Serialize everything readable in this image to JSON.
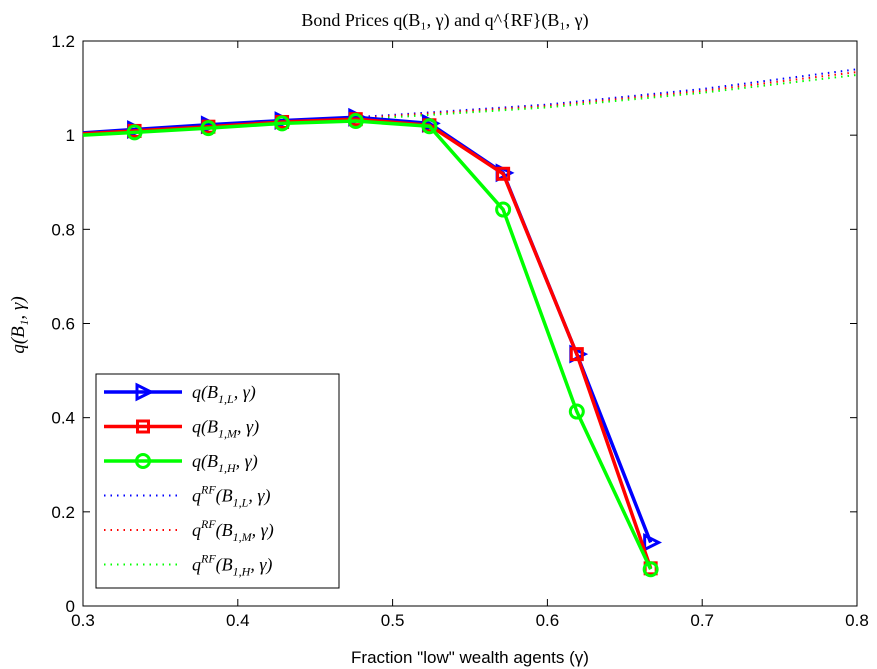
{
  "chart_data": {
    "type": "line",
    "title": "Bond Prices q(B₁, γ) and q^{RF}(B₁, γ)",
    "xlabel": "Fraction \"low\" wealth agents (γ)",
    "ylabel": "q(B₁, γ)",
    "xlim": [
      0.3,
      0.8
    ],
    "ylim": [
      0,
      1.2
    ],
    "xticks": [
      "0.3",
      "0.4",
      "0.5",
      "0.6",
      "0.7",
      "0.8"
    ],
    "yticks": [
      "0",
      "0.2",
      "0.4",
      "0.6",
      "0.8",
      "1",
      "1.2"
    ],
    "grid": false,
    "legend_position": "bottom-left",
    "series": [
      {
        "name": "q(B_{1,L}, γ)",
        "style": "solid",
        "marker": "triangle-right",
        "color": "#0000ff",
        "x": [
          0.3,
          0.3333,
          0.381,
          0.4286,
          0.4762,
          0.5238,
          0.5714,
          0.619,
          0.6667
        ],
        "y": [
          1.005,
          1.012,
          1.022,
          1.031,
          1.038,
          1.025,
          0.92,
          0.535,
          0.135
        ]
      },
      {
        "name": "q(B_{1,M}, γ)",
        "style": "solid",
        "marker": "square",
        "color": "#ff0000",
        "x": [
          0.3,
          0.3333,
          0.381,
          0.4286,
          0.4762,
          0.5238,
          0.5714,
          0.619,
          0.6667
        ],
        "y": [
          1.003,
          1.009,
          1.018,
          1.028,
          1.034,
          1.021,
          0.918,
          0.535,
          0.08
        ]
      },
      {
        "name": "q(B_{1,H}, γ)",
        "style": "solid",
        "marker": "circle",
        "color": "#00ff00",
        "x": [
          0.3,
          0.3333,
          0.381,
          0.4286,
          0.4762,
          0.5238,
          0.5714,
          0.619,
          0.6667
        ],
        "y": [
          1.0,
          1.006,
          1.015,
          1.025,
          1.03,
          1.019,
          0.842,
          0.413,
          0.078
        ]
      },
      {
        "name": "q^{RF}(B_{1,L}, γ)",
        "style": "dotted",
        "marker": "none",
        "color": "#0000ff",
        "x": [
          0.3,
          0.4,
          0.5,
          0.6,
          0.7,
          0.8
        ],
        "y": [
          1.005,
          1.023,
          1.043,
          1.065,
          1.098,
          1.14
        ]
      },
      {
        "name": "q^{RF}(B_{1,M}, γ)",
        "style": "dotted",
        "marker": "none",
        "color": "#ff0000",
        "x": [
          0.3,
          0.4,
          0.5,
          0.6,
          0.7,
          0.8
        ],
        "y": [
          1.003,
          1.021,
          1.041,
          1.062,
          1.094,
          1.134
        ]
      },
      {
        "name": "q^{RF}(B_{1,H}, γ)",
        "style": "dotted",
        "marker": "none",
        "color": "#00ff00",
        "x": [
          0.3,
          0.4,
          0.5,
          0.6,
          0.7,
          0.8
        ],
        "y": [
          1.0,
          1.018,
          1.038,
          1.059,
          1.09,
          1.128
        ]
      }
    ]
  }
}
